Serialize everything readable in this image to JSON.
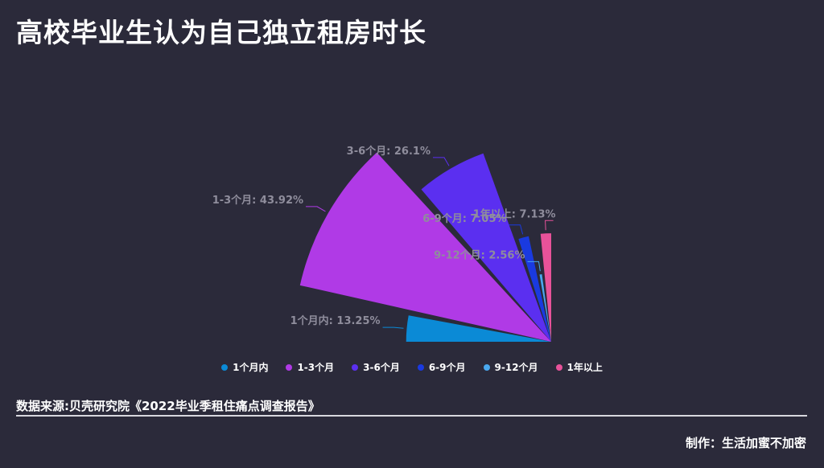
{
  "title": "高校毕业生认为自己独立租房时长",
  "source": "数据来源:贝壳研究院《2022毕业季租住痛点调查报告》",
  "credit": "制作：生活加蜜不加密",
  "chart_data": {
    "type": "pie",
    "variant": "rose",
    "slices": [
      {
        "name": "1个月内",
        "value": 13.25,
        "label": "1个月内: 13.25%",
        "color": "#0b8ad6"
      },
      {
        "name": "1-3个月",
        "value": 43.92,
        "label": "1-3个月: 43.92%",
        "color": "#b03ae6"
      },
      {
        "name": "3-6个月",
        "value": 26.1,
        "label": "3-6个月: 26.1%",
        "color": "#5b2ff0"
      },
      {
        "name": "6-9个月",
        "value": 7.05,
        "label": "6-9个月: 7.05%",
        "color": "#1a3ae0"
      },
      {
        "name": "9-12个月",
        "value": 2.56,
        "label": "9-12个月: 2.56%",
        "color": "#4aa8ee"
      },
      {
        "name": "1年以上",
        "value": 7.13,
        "label": "1年以上: 7.13%",
        "color": "#e8529a"
      }
    ]
  }
}
